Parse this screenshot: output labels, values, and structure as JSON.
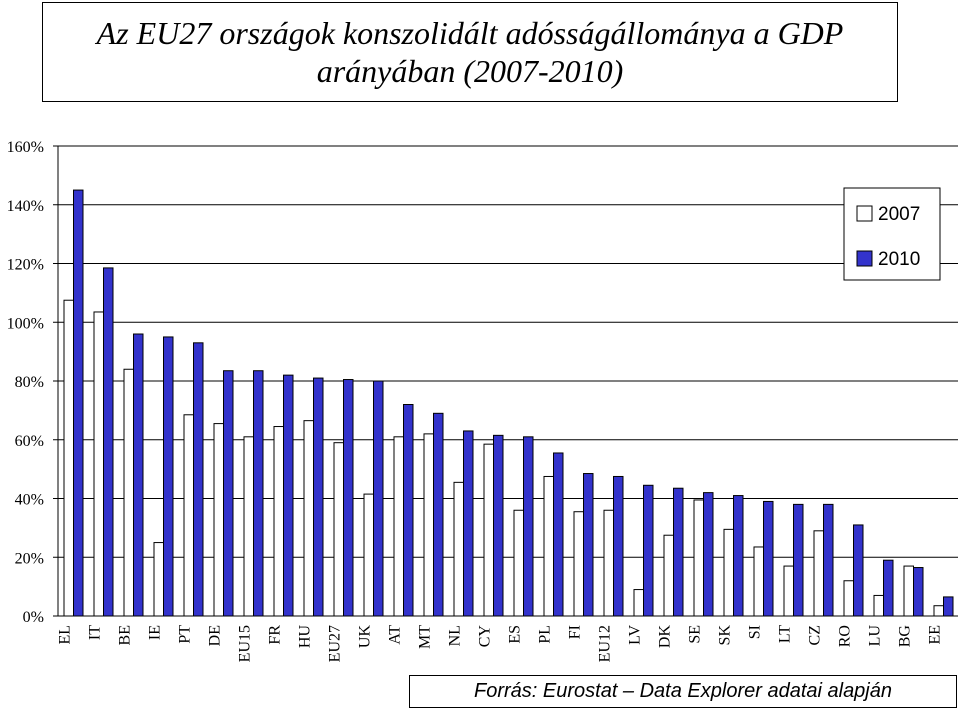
{
  "title": {
    "line1": "Az EU27 országok konszolidált adósságállománya a GDP",
    "line2": "arányában (2007-2010)"
  },
  "source": "Forrás: Eurostat – Data Explorer adatai alapján",
  "colors": {
    "series_2007": "#ffffff",
    "series_2010": "#3333cc",
    "outline": "#000000"
  },
  "chart_data": {
    "type": "bar",
    "categories": [
      "EL",
      "IT",
      "BE",
      "IE",
      "PT",
      "DE",
      "EU15",
      "FR",
      "HU",
      "EU27",
      "UK",
      "AT",
      "MT",
      "NL",
      "CY",
      "ES",
      "PL",
      "FI",
      "EU12",
      "LV",
      "DK",
      "SE",
      "SK",
      "SI",
      "LT",
      "CZ",
      "RO",
      "LU",
      "BG",
      "EE"
    ],
    "series": [
      {
        "name": "2007",
        "values": [
          107.5,
          103.5,
          84,
          25,
          68.5,
          65.5,
          61,
          64.5,
          66.5,
          59,
          41.5,
          61,
          62,
          45.5,
          58.5,
          36,
          47.5,
          35.5,
          36,
          9,
          27.5,
          39.5,
          29.5,
          23.5,
          17,
          29,
          12,
          7,
          17,
          3.5
        ]
      },
      {
        "name": "2010",
        "values": [
          145,
          118.5,
          96,
          95,
          93,
          83.5,
          83.5,
          82,
          81,
          80.5,
          80,
          72,
          69,
          63,
          61.5,
          61,
          55.5,
          48.5,
          47.5,
          44.5,
          43.5,
          42,
          41,
          39,
          38,
          38,
          31,
          19,
          16.5,
          6.5
        ]
      }
    ],
    "yticks": [
      "0%",
      "20%",
      "40%",
      "60%",
      "80%",
      "100%",
      "120%",
      "140%",
      "160%"
    ],
    "ylim": [
      0,
      160
    ],
    "ystep": 20,
    "grid": true,
    "legend": "top-right"
  }
}
